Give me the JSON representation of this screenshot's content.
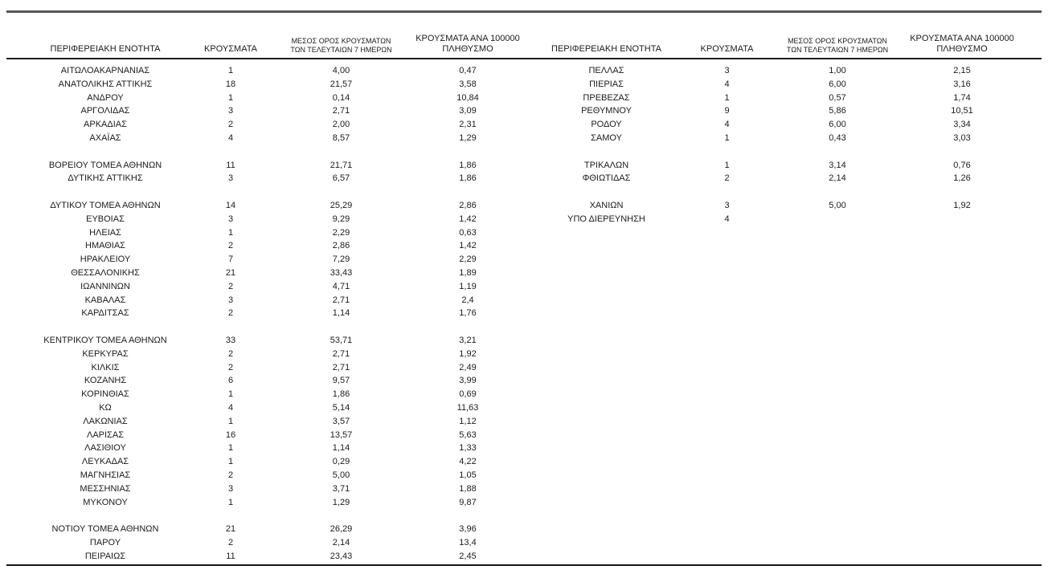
{
  "colors": {
    "background": "#ffffff",
    "text": "#1b1b1b",
    "top_rule": "#575757",
    "table_rule": "#1c1c1c"
  },
  "table": {
    "headers": {
      "region": "ΠΕΡΙΦΕΡΕΙΑΚΗ ΕΝΟΤΗΤΑ",
      "cases": "ΚΡΟΥΣΜΑΤΑ",
      "avg7_line1": "ΜΕΣΟΣ ΟΡΟΣ ΚΡΟΥΣΜΑΤΩΝ",
      "avg7_line2": "ΤΩΝ ΤΕΛΕΥΤΑΙΩΝ 7 ΗΜΕΡΩΝ",
      "per100k_line1": "ΚΡΟΥΣΜΑΤΑ ΑΝΑ 100000",
      "per100k_line2": "ΠΛΗΘΥΣΜΟ"
    },
    "rows": [
      {
        "l": [
          "ΑΙΤΩΛΟΑΚΑΡΝΑΝΙΑΣ",
          "1",
          "4,00",
          "0,47"
        ],
        "r": [
          "ΠΕΛΛΑΣ",
          "3",
          "1,00",
          "2,15"
        ]
      },
      {
        "l": [
          "ΑΝΑΤΟΛΙΚΗΣ ΑΤΤΙΚΗΣ",
          "18",
          "21,57",
          "3,58"
        ],
        "r": [
          "ΠΙΕΡΙΑΣ",
          "4",
          "6,00",
          "3,16"
        ]
      },
      {
        "l": [
          "ΑΝΔΡΟΥ",
          "1",
          "0,14",
          "10,84"
        ],
        "r": [
          "ΠΡΕΒΕΖΑΣ",
          "1",
          "0,57",
          "1,74"
        ]
      },
      {
        "l": [
          "ΑΡΓΟΛΙΔΑΣ",
          "3",
          "2,71",
          "3,09"
        ],
        "r": [
          "ΡΕΘΥΜΝΟΥ",
          "9",
          "5,86",
          "10,51"
        ]
      },
      {
        "l": [
          "ΑΡΚΑΔΙΑΣ",
          "2",
          "2,00",
          "2,31"
        ],
        "r": [
          "ΡΟΔΟΥ",
          "4",
          "6,00",
          "3,34"
        ]
      },
      {
        "l": [
          "ΑΧΑΪΑΣ",
          "4",
          "8,57",
          "1,29"
        ],
        "r": [
          "ΣΑΜΟΥ",
          "1",
          "0,43",
          "3,03"
        ]
      },
      {
        "l": null,
        "r": null
      },
      {
        "l": [
          "ΒΟΡΕΙΟΥ ΤΟΜΕΑ ΑΘΗΝΩΝ",
          "11",
          "21,71",
          "1,86"
        ],
        "r": [
          "ΤΡΙΚΑΛΩΝ",
          "1",
          "3,14",
          "0,76"
        ]
      },
      {
        "l": [
          "ΔΥΤΙΚΗΣ ΑΤΤΙΚΗΣ",
          "3",
          "6,57",
          "1,86"
        ],
        "r": [
          "ΦΘΙΩΤΙΔΑΣ",
          "2",
          "2,14",
          "1,26"
        ]
      },
      {
        "l": null,
        "r": null
      },
      {
        "l": [
          "ΔΥΤΙΚΟΥ ΤΟΜΕΑ ΑΘΗΝΩΝ",
          "14",
          "25,29",
          "2,86"
        ],
        "r": [
          "ΧΑΝΙΩΝ",
          "3",
          "5,00",
          "1,92"
        ]
      },
      {
        "l": [
          "ΕΥΒΟΙΑΣ",
          "3",
          "9,29",
          "1,42"
        ],
        "r": [
          "ΥΠΟ ΔΙΕΡΕΥΝΗΣΗ",
          "4",
          "",
          ""
        ]
      },
      {
        "l": [
          "ΗΛΕΙΑΣ",
          "1",
          "2,29",
          "0,63"
        ],
        "r": null
      },
      {
        "l": [
          "ΗΜΑΘΙΑΣ",
          "2",
          "2,86",
          "1,42"
        ],
        "r": null
      },
      {
        "l": [
          "ΗΡΑΚΛΕΙΟΥ",
          "7",
          "7,29",
          "2,29"
        ],
        "r": null
      },
      {
        "l": [
          "ΘΕΣΣΑΛΟΝΙΚΗΣ",
          "21",
          "33,43",
          "1,89"
        ],
        "r": null
      },
      {
        "l": [
          "ΙΩΑΝΝΙΝΩΝ",
          "2",
          "4,71",
          "1,19"
        ],
        "r": null
      },
      {
        "l": [
          "ΚΑΒΑΛΑΣ",
          "3",
          "2,71",
          "2,4"
        ],
        "r": null
      },
      {
        "l": [
          "ΚΑΡΔΙΤΣΑΣ",
          "2",
          "1,14",
          "1,76"
        ],
        "r": null
      },
      {
        "l": null,
        "r": null
      },
      {
        "l": [
          "ΚΕΝΤΡΙΚΟΥ ΤΟΜΕΑ ΑΘΗΝΩΝ",
          "33",
          "53,71",
          "3,21"
        ],
        "r": null
      },
      {
        "l": [
          "ΚΕΡΚΥΡΑΣ",
          "2",
          "2,71",
          "1,92"
        ],
        "r": null
      },
      {
        "l": [
          "ΚΙΛΚΙΣ",
          "2",
          "2,71",
          "2,49"
        ],
        "r": null
      },
      {
        "l": [
          "ΚΟΖΑΝΗΣ",
          "6",
          "9,57",
          "3,99"
        ],
        "r": null
      },
      {
        "l": [
          "ΚΟΡΙΝΘΙΑΣ",
          "1",
          "1,86",
          "0,69"
        ],
        "r": null
      },
      {
        "l": [
          "ΚΩ",
          "4",
          "5,14",
          "11,63"
        ],
        "r": null
      },
      {
        "l": [
          "ΛΑΚΩΝΙΑΣ",
          "1",
          "3,57",
          "1,12"
        ],
        "r": null
      },
      {
        "l": [
          "ΛΑΡΙΣΑΣ",
          "16",
          "13,57",
          "5,63"
        ],
        "r": null
      },
      {
        "l": [
          "ΛΑΣΙΘΙΟΥ",
          "1",
          "1,14",
          "1,33"
        ],
        "r": null
      },
      {
        "l": [
          "ΛΕΥΚΑΔΑΣ",
          "1",
          "0,29",
          "4,22"
        ],
        "r": null
      },
      {
        "l": [
          "ΜΑΓΝΗΣΙΑΣ",
          "2",
          "5,00",
          "1,05"
        ],
        "r": null
      },
      {
        "l": [
          "ΜΕΣΣΗΝΙΑΣ",
          "3",
          "3,71",
          "1,88"
        ],
        "r": null
      },
      {
        "l": [
          "ΜΥΚΟΝΟΥ",
          "1",
          "1,29",
          "9,87"
        ],
        "r": null
      },
      {
        "l": null,
        "r": null
      },
      {
        "l": [
          "ΝΟΤΙΟΥ ΤΟΜΕΑ ΑΘΗΝΩΝ",
          "21",
          "26,29",
          "3,96"
        ],
        "r": null
      },
      {
        "l": [
          "ΠΑΡΟΥ",
          "2",
          "2,14",
          "13,4"
        ],
        "r": null
      },
      {
        "l": [
          "ΠΕΙΡΑΙΩΣ",
          "11",
          "23,43",
          "2,45"
        ],
        "r": null
      }
    ]
  }
}
